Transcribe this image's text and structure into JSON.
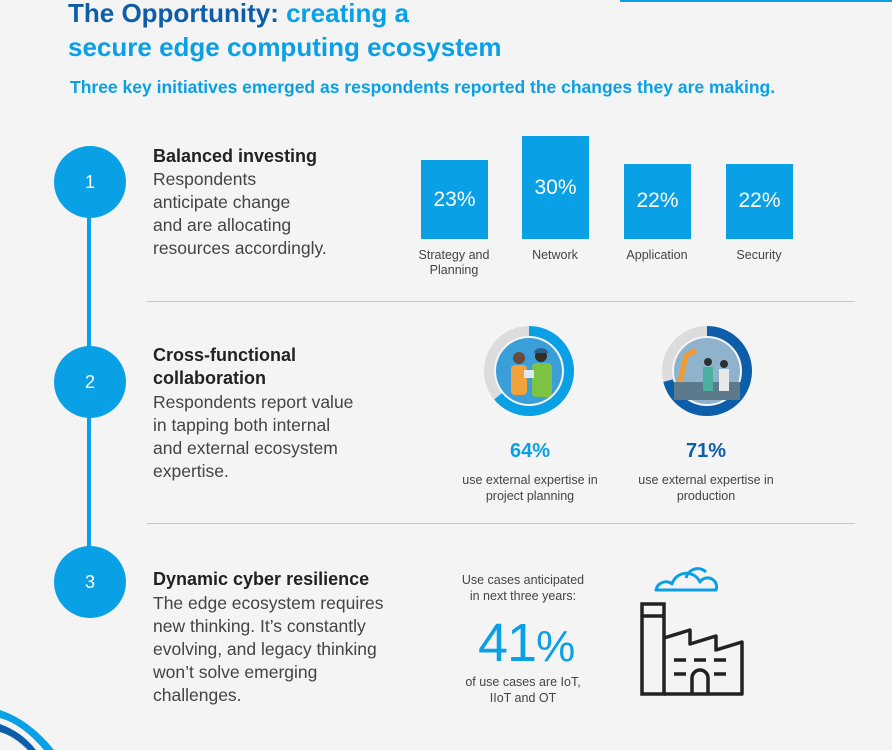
{
  "header": {
    "title_strong": "The Opportunity:",
    "title_light_1": "creating a",
    "title_light_2": "secure edge computing ecosystem",
    "subtitle": "Three key initiatives emerged as respondents reported the changes they are making."
  },
  "colors": {
    "accent": "#0aa0e6",
    "dark_blue": "#0d5ea8",
    "ring_blue_1": "#0aa0e6",
    "ring_blue_2": "#0d5ea8"
  },
  "sections": [
    {
      "number": "1",
      "heading": "Balanced investing",
      "body_lines": [
        "Respondents",
        "anticipate change",
        "and are allocating",
        "resources accordingly."
      ]
    },
    {
      "number": "2",
      "heading_lines": [
        "Cross-functional",
        "collaboration"
      ],
      "body_lines": [
        "Respondents report value",
        "in tapping both internal",
        "and external ecosystem",
        "expertise."
      ]
    },
    {
      "number": "3",
      "heading": "Dynamic cyber resilience",
      "body_lines": [
        "The edge ecosystem requires",
        "new thinking. It’s constantly",
        "evolving, and legacy thinking",
        "won’t solve emerging",
        "challenges."
      ]
    }
  ],
  "chart_data": {
    "type": "bar",
    "categories": [
      "Strategy and Planning",
      "Network",
      "Application",
      "Security"
    ],
    "category_lines": [
      [
        "Strategy and",
        "Planning"
      ],
      [
        "Network"
      ],
      [
        "Application"
      ],
      [
        "Security"
      ]
    ],
    "values": [
      23,
      30,
      22,
      22
    ],
    "value_labels": [
      "23%",
      "30%",
      "22%",
      "22%"
    ]
  },
  "rings": [
    {
      "value": 64,
      "pct": "64%",
      "caption_lines": [
        "use external expertise in",
        "project planning"
      ],
      "icon": "people-tablet-icon"
    },
    {
      "value": 71,
      "pct": "71%",
      "caption_lines": [
        "use external expertise in",
        "production"
      ],
      "icon": "factory-robot-icon"
    }
  ],
  "use_cases": {
    "label_lines": [
      "Use cases anticipated",
      "in next three years:"
    ],
    "big_number": "41",
    "big_unit": "%",
    "caption_lines": [
      "of use cases are IoT,",
      "IIoT and OT"
    ],
    "icon": "cloud-factory-icon"
  }
}
